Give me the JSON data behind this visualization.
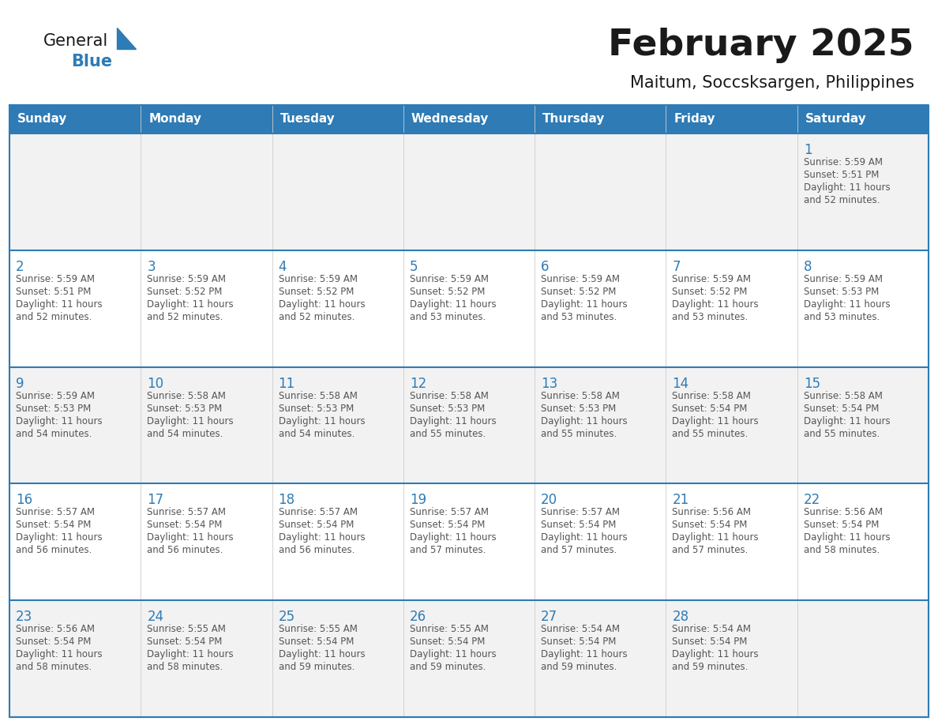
{
  "title": "February 2025",
  "subtitle": "Maitum, Soccsksargen, Philippines",
  "header_color": "#2E7BB5",
  "header_text_color": "#FFFFFF",
  "cell_bg_color": "#FFFFFF",
  "border_color": "#2E7BB5",
  "day_number_color": "#2E7BB5",
  "cell_text_color": "#555555",
  "alt_row_color": "#F2F2F2",
  "days_of_week": [
    "Sunday",
    "Monday",
    "Tuesday",
    "Wednesday",
    "Thursday",
    "Friday",
    "Saturday"
  ],
  "calendar_data": [
    [
      {
        "day": null,
        "sunrise": null,
        "sunset": null,
        "daylight": null
      },
      {
        "day": null,
        "sunrise": null,
        "sunset": null,
        "daylight": null
      },
      {
        "day": null,
        "sunrise": null,
        "sunset": null,
        "daylight": null
      },
      {
        "day": null,
        "sunrise": null,
        "sunset": null,
        "daylight": null
      },
      {
        "day": null,
        "sunrise": null,
        "sunset": null,
        "daylight": null
      },
      {
        "day": null,
        "sunrise": null,
        "sunset": null,
        "daylight": null
      },
      {
        "day": 1,
        "sunrise": "5:59 AM",
        "sunset": "5:51 PM",
        "daylight": "11 hours\nand 52 minutes."
      }
    ],
    [
      {
        "day": 2,
        "sunrise": "5:59 AM",
        "sunset": "5:51 PM",
        "daylight": "11 hours\nand 52 minutes."
      },
      {
        "day": 3,
        "sunrise": "5:59 AM",
        "sunset": "5:52 PM",
        "daylight": "11 hours\nand 52 minutes."
      },
      {
        "day": 4,
        "sunrise": "5:59 AM",
        "sunset": "5:52 PM",
        "daylight": "11 hours\nand 52 minutes."
      },
      {
        "day": 5,
        "sunrise": "5:59 AM",
        "sunset": "5:52 PM",
        "daylight": "11 hours\nand 53 minutes."
      },
      {
        "day": 6,
        "sunrise": "5:59 AM",
        "sunset": "5:52 PM",
        "daylight": "11 hours\nand 53 minutes."
      },
      {
        "day": 7,
        "sunrise": "5:59 AM",
        "sunset": "5:52 PM",
        "daylight": "11 hours\nand 53 minutes."
      },
      {
        "day": 8,
        "sunrise": "5:59 AM",
        "sunset": "5:53 PM",
        "daylight": "11 hours\nand 53 minutes."
      }
    ],
    [
      {
        "day": 9,
        "sunrise": "5:59 AM",
        "sunset": "5:53 PM",
        "daylight": "11 hours\nand 54 minutes."
      },
      {
        "day": 10,
        "sunrise": "5:58 AM",
        "sunset": "5:53 PM",
        "daylight": "11 hours\nand 54 minutes."
      },
      {
        "day": 11,
        "sunrise": "5:58 AM",
        "sunset": "5:53 PM",
        "daylight": "11 hours\nand 54 minutes."
      },
      {
        "day": 12,
        "sunrise": "5:58 AM",
        "sunset": "5:53 PM",
        "daylight": "11 hours\nand 55 minutes."
      },
      {
        "day": 13,
        "sunrise": "5:58 AM",
        "sunset": "5:53 PM",
        "daylight": "11 hours\nand 55 minutes."
      },
      {
        "day": 14,
        "sunrise": "5:58 AM",
        "sunset": "5:54 PM",
        "daylight": "11 hours\nand 55 minutes."
      },
      {
        "day": 15,
        "sunrise": "5:58 AM",
        "sunset": "5:54 PM",
        "daylight": "11 hours\nand 55 minutes."
      }
    ],
    [
      {
        "day": 16,
        "sunrise": "5:57 AM",
        "sunset": "5:54 PM",
        "daylight": "11 hours\nand 56 minutes."
      },
      {
        "day": 17,
        "sunrise": "5:57 AM",
        "sunset": "5:54 PM",
        "daylight": "11 hours\nand 56 minutes."
      },
      {
        "day": 18,
        "sunrise": "5:57 AM",
        "sunset": "5:54 PM",
        "daylight": "11 hours\nand 56 minutes."
      },
      {
        "day": 19,
        "sunrise": "5:57 AM",
        "sunset": "5:54 PM",
        "daylight": "11 hours\nand 57 minutes."
      },
      {
        "day": 20,
        "sunrise": "5:57 AM",
        "sunset": "5:54 PM",
        "daylight": "11 hours\nand 57 minutes."
      },
      {
        "day": 21,
        "sunrise": "5:56 AM",
        "sunset": "5:54 PM",
        "daylight": "11 hours\nand 57 minutes."
      },
      {
        "day": 22,
        "sunrise": "5:56 AM",
        "sunset": "5:54 PM",
        "daylight": "11 hours\nand 58 minutes."
      }
    ],
    [
      {
        "day": 23,
        "sunrise": "5:56 AM",
        "sunset": "5:54 PM",
        "daylight": "11 hours\nand 58 minutes."
      },
      {
        "day": 24,
        "sunrise": "5:55 AM",
        "sunset": "5:54 PM",
        "daylight": "11 hours\nand 58 minutes."
      },
      {
        "day": 25,
        "sunrise": "5:55 AM",
        "sunset": "5:54 PM",
        "daylight": "11 hours\nand 59 minutes."
      },
      {
        "day": 26,
        "sunrise": "5:55 AM",
        "sunset": "5:54 PM",
        "daylight": "11 hours\nand 59 minutes."
      },
      {
        "day": 27,
        "sunrise": "5:54 AM",
        "sunset": "5:54 PM",
        "daylight": "11 hours\nand 59 minutes."
      },
      {
        "day": 28,
        "sunrise": "5:54 AM",
        "sunset": "5:54 PM",
        "daylight": "11 hours\nand 59 minutes."
      },
      {
        "day": null,
        "sunrise": null,
        "sunset": null,
        "daylight": null
      }
    ]
  ],
  "logo_text_general": "General",
  "logo_text_blue": "Blue",
  "logo_general_color": "#1a1a1a",
  "logo_blue_color": "#2E7BB5",
  "fig_width": 11.88,
  "fig_height": 9.18,
  "dpi": 100
}
